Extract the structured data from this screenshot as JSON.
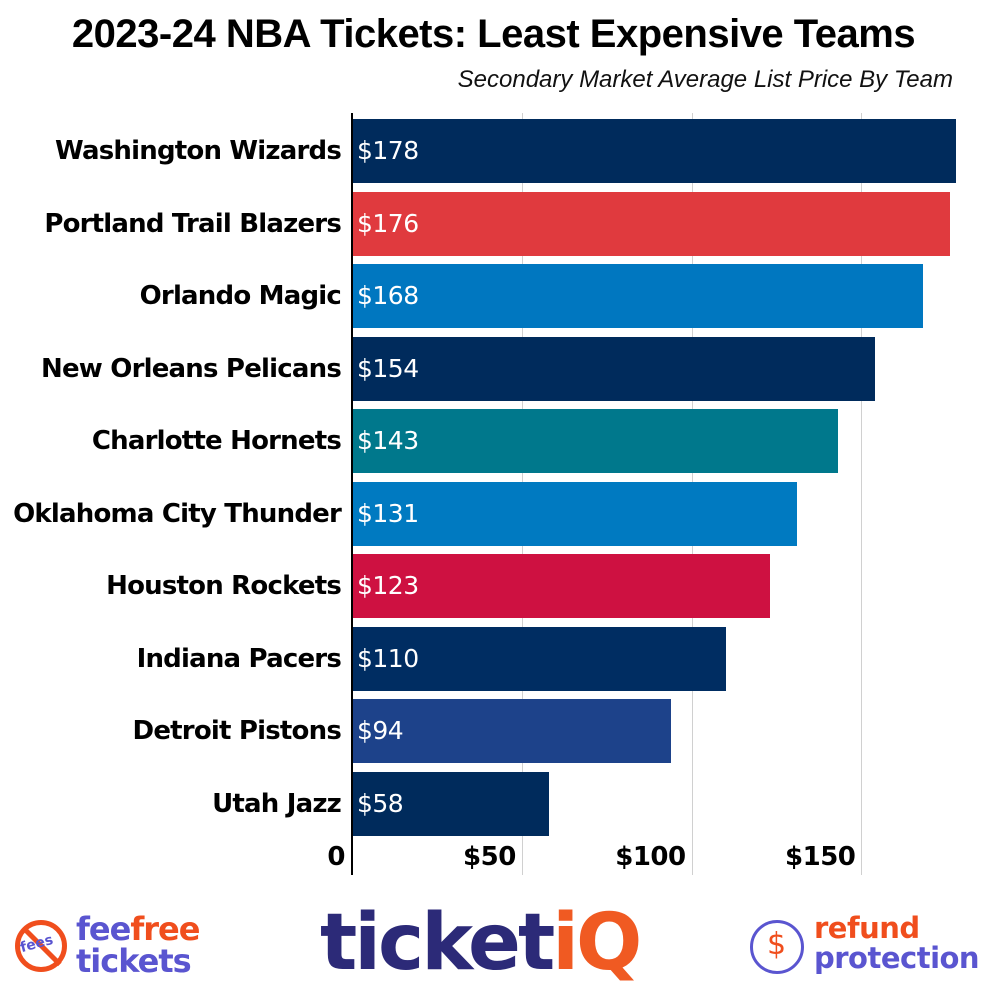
{
  "header": {
    "title": "2023-24 NBA Tickets: Least Expensive Teams",
    "subtitle": "Secondary Market Average List Price By Team"
  },
  "chart_data": {
    "type": "bar",
    "orientation": "horizontal",
    "title": "2023-24 NBA Tickets: Least Expensive Teams",
    "subtitle": "Secondary Market Average List Price By Team",
    "xlabel": "",
    "ylabel": "",
    "xlim": [
      0,
      185
    ],
    "grid": true,
    "x_ticks": [
      "0",
      "$50",
      "$100",
      "$150"
    ],
    "x_tick_values": [
      0,
      50,
      100,
      150
    ],
    "categories": [
      "Washington Wizards",
      "Portland Trail Blazers",
      "Orlando Magic",
      "New Orleans Pelicans",
      "Charlotte Hornets",
      "Oklahoma City Thunder",
      "Houston Rockets",
      "Indiana Pacers",
      "Detroit Pistons",
      "Utah Jazz"
    ],
    "values": [
      178,
      176,
      168,
      154,
      143,
      131,
      123,
      110,
      94,
      58
    ],
    "value_labels": [
      "$178",
      "$176",
      "$168",
      "$154",
      "$143",
      "$131",
      "$123",
      "$110",
      "$94",
      "$58"
    ],
    "colors": [
      "#002B5C",
      "#E03A3E",
      "#0077C0",
      "#002B5C",
      "#00788C",
      "#007AC1",
      "#CE1141",
      "#002D62",
      "#1D428A",
      "#002B5C"
    ]
  },
  "footer": {
    "feefree": {
      "icon_text": "fees",
      "word1": "fee",
      "word2": "free",
      "word3": "tickets"
    },
    "ticketiq": {
      "part1": "ticket",
      "part2": "iQ"
    },
    "refund": {
      "icon_text": "$",
      "line1": "refund",
      "line2": "protection"
    },
    "colors": {
      "purple": "#5A55D0",
      "orange": "#F04E1D",
      "navy": "#2C2A78"
    }
  }
}
